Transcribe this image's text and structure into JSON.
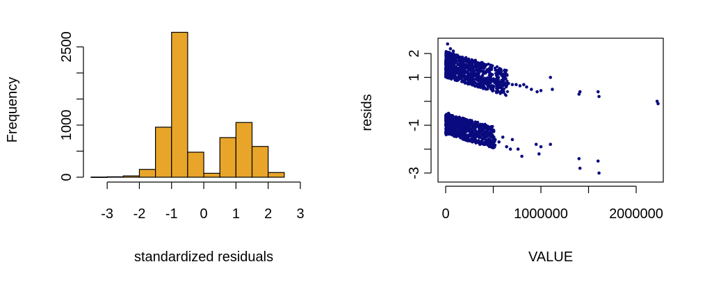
{
  "chart_data": [
    {
      "type": "bar",
      "subtype": "histogram",
      "xlabel": "standardized residuals",
      "ylabel": "Frequency",
      "bin_edges": [
        -3.5,
        -3.0,
        -2.5,
        -2.0,
        -1.5,
        -1.0,
        -0.5,
        0.0,
        0.5,
        1.0,
        1.5,
        2.0,
        2.5
      ],
      "values": [
        3,
        8,
        25,
        150,
        960,
        2780,
        480,
        75,
        760,
        1050,
        590,
        90
      ],
      "xlim": [
        -3.5,
        3.0
      ],
      "xticks": [
        -3,
        -2,
        -1,
        0,
        1,
        2,
        3
      ],
      "xtick_labels": [
        "-3",
        "-2",
        "-1",
        "0",
        "1",
        "2",
        "3"
      ],
      "ylim": [
        0,
        2600
      ],
      "yticks": [
        0,
        500,
        1000,
        1500,
        2000,
        2500
      ],
      "ytick_labels": [
        "0",
        "",
        "1000",
        "",
        "",
        "2500"
      ],
      "bar_color": "#E8A52A",
      "grid": false
    },
    {
      "type": "scatter",
      "xlabel": "VALUE",
      "ylabel": "resids",
      "xlim": [
        0,
        2300000
      ],
      "ylim": [
        -3.1,
        2.6
      ],
      "xticks": [
        0,
        500000,
        1000000,
        1500000,
        2000000
      ],
      "xtick_labels": [
        "0",
        "",
        "1000000",
        "",
        "2000000"
      ],
      "yticks": [
        -3,
        -2,
        -1,
        0,
        1,
        2
      ],
      "ytick_labels": [
        "-3",
        "",
        "-1",
        "",
        "1",
        "2"
      ],
      "point_color": "#0A0A7F",
      "grid": false,
      "series": [
        {
          "x": [
            20000,
            50000,
            80000,
            110000,
            150000,
            180000,
            220000,
            260000,
            300000,
            340000,
            380000,
            420000,
            460000,
            500000,
            540000,
            580000,
            620000,
            660000,
            700000,
            740000,
            780000,
            820000,
            850000,
            900000,
            960000,
            1000000,
            1100000,
            1120000,
            1400000,
            1410000,
            1600000,
            1610000,
            2220000,
            2230000,
            30000,
            60000,
            90000,
            120000,
            160000,
            200000,
            240000,
            280000,
            320000,
            360000,
            400000,
            440000,
            480000,
            520000,
            560000,
            600000,
            640000,
            680000,
            700000,
            760000,
            800000,
            950000,
            980000,
            1000000,
            1100000,
            1400000,
            1410000,
            1600000,
            1610000
          ],
          "y": [
            2.4,
            2.2,
            2.1,
            1.9,
            1.7,
            1.6,
            1.4,
            1.3,
            1.2,
            1.1,
            1.0,
            0.95,
            0.9,
            0.85,
            0.8,
            0.8,
            0.75,
            0.75,
            0.7,
            0.7,
            0.65,
            0.7,
            0.6,
            0.5,
            0.4,
            0.45,
            1.0,
            0.5,
            0.3,
            0.4,
            0.4,
            0.2,
            0.0,
            -0.1,
            -0.5,
            -0.7,
            -0.9,
            -1.1,
            -1.3,
            -1.5,
            -1.6,
            -1.7,
            -1.7,
            -1.8,
            -1.8,
            -1.7,
            -1.9,
            -1.6,
            -1.7,
            -1.5,
            -1.9,
            -2.0,
            -1.6,
            -2.0,
            -2.3,
            -1.8,
            -2.2,
            -1.9,
            -1.8,
            -2.4,
            -2.8,
            -2.5,
            -3.0
          ]
        }
      ]
    }
  ]
}
